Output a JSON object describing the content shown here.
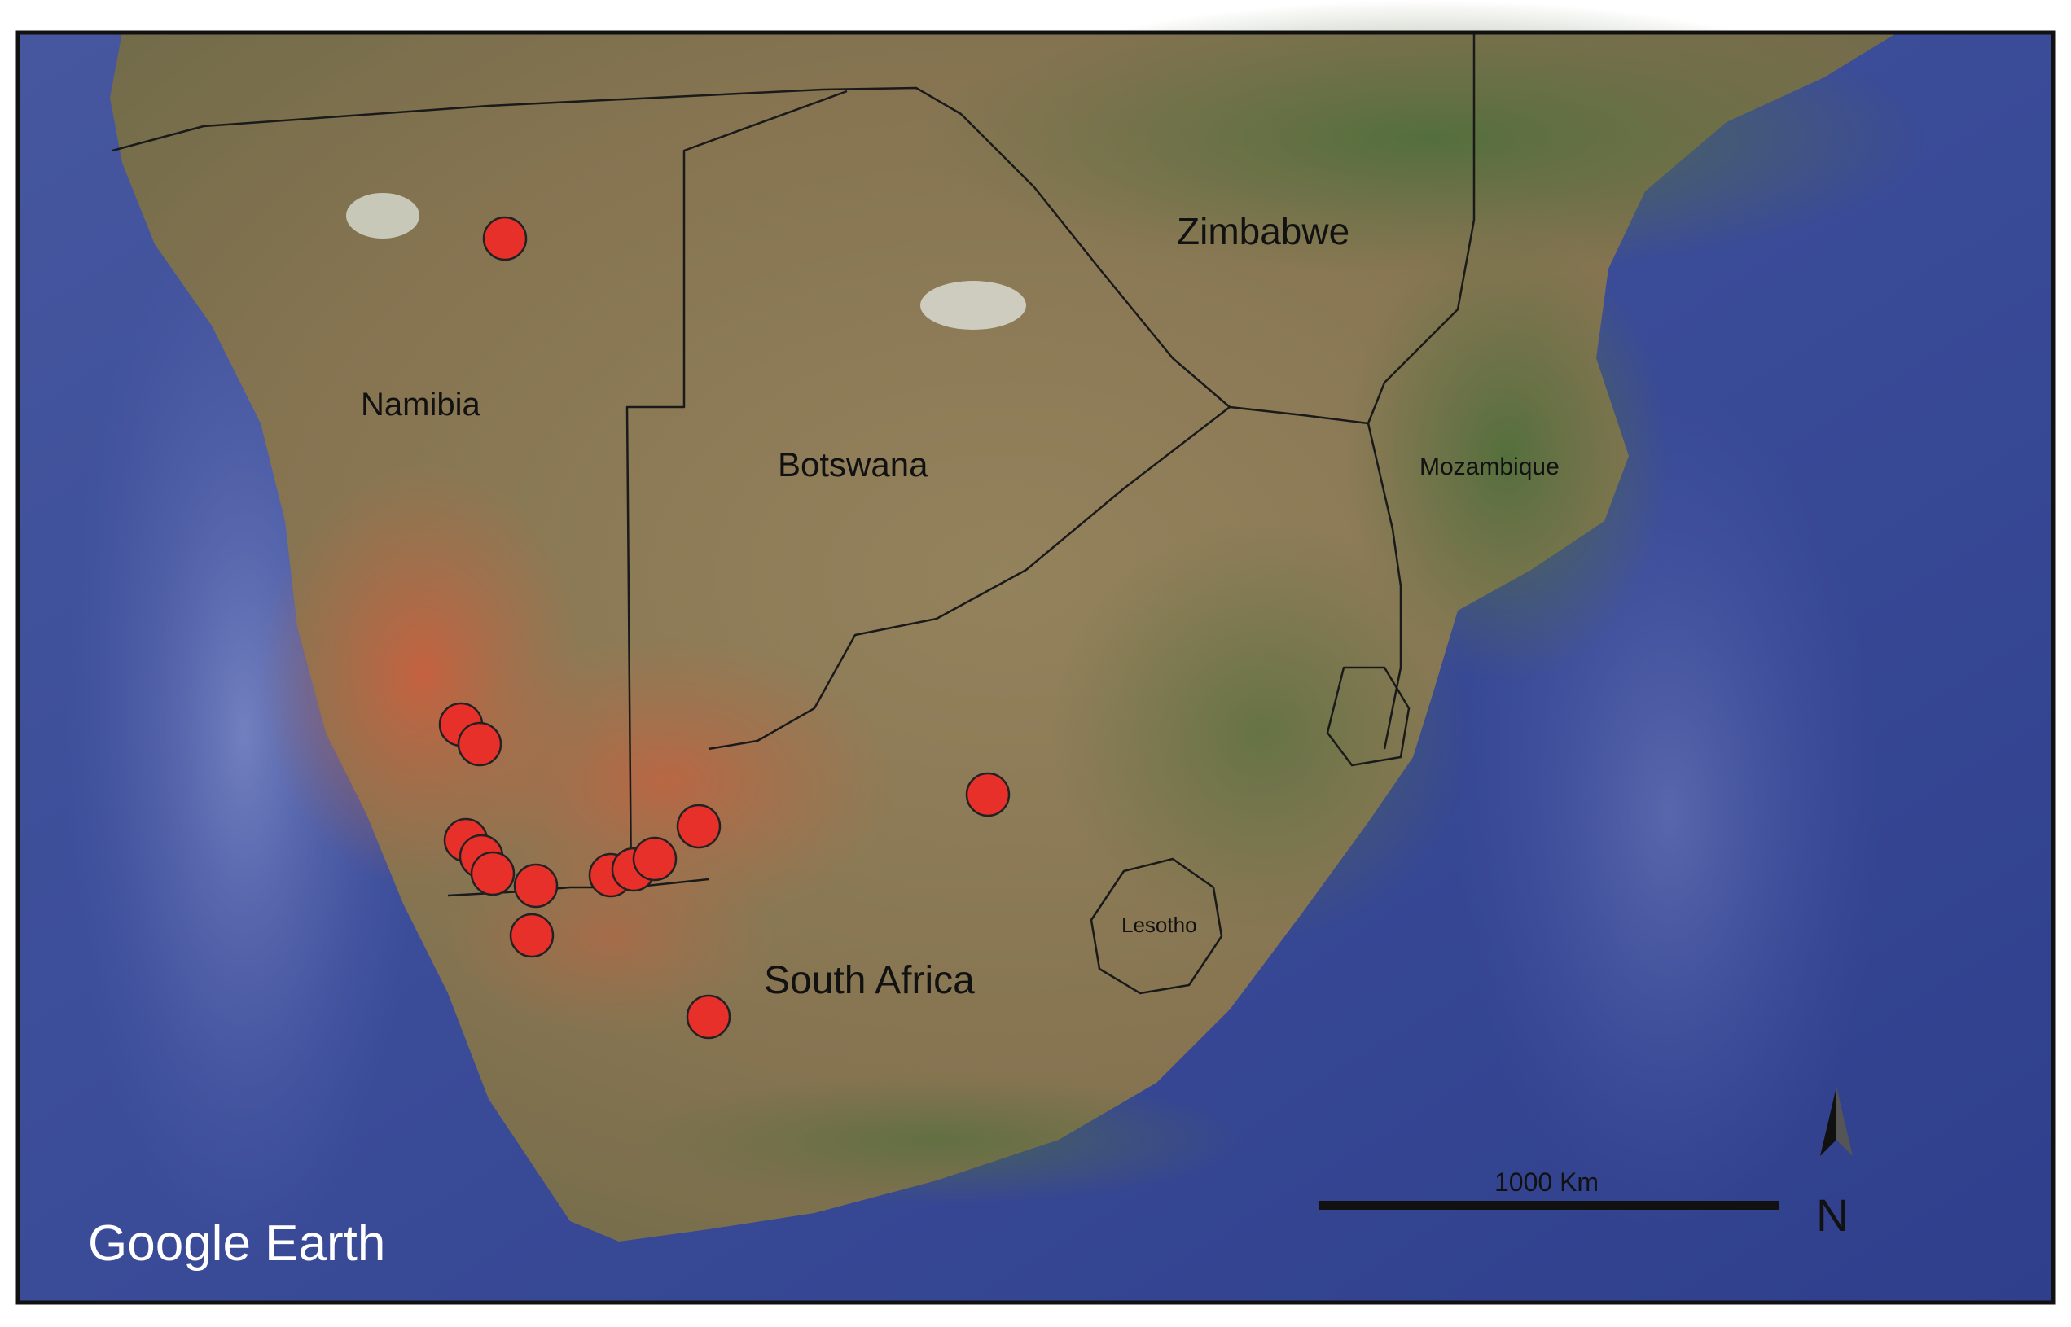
{
  "map": {
    "attribution": "Google Earth",
    "labels": {
      "zimbabwe": "Zimbabwe",
      "namibia": "Namibia",
      "botswana": "Botswana",
      "mozambique": "Mozambique",
      "lesotho": "Lesotho",
      "south_africa": "South Africa"
    },
    "scale_bar": {
      "label": "1000 Km"
    },
    "north_arrow": {
      "label": "N"
    },
    "marker_count": 15,
    "colors": {
      "ocean": "#3d4f9c",
      "land": "#8c7a55",
      "desert": "#c05d3c",
      "vegetation": "#4a6b38",
      "marker": "#e8302a",
      "border": "#1a1a1a"
    }
  }
}
